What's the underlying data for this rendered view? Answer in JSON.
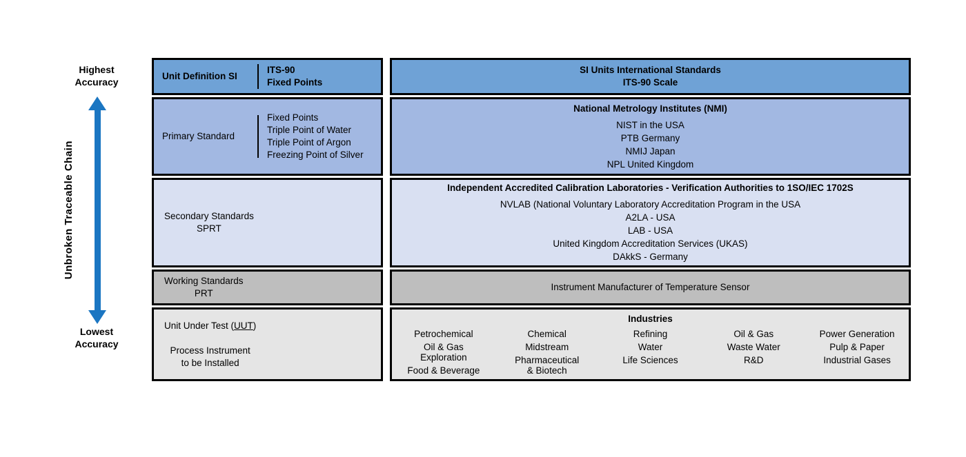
{
  "sidebar": {
    "top_label": "Highest\nAccuracy",
    "bottom_label": "Lowest\nAccuracy",
    "axis_label": "Unbroken Traceable Chain",
    "arrow_color": "#1B76C2"
  },
  "left_column": {
    "unit_definition": {
      "title": "Unit Definition SI",
      "detail": "ITS-90\nFixed Points"
    },
    "primary_standard": {
      "title": "Primary Standard",
      "detail": "Fixed Points\nTriple Point of Water\nTriple Point of Argon\nFreezing Point of Silver"
    },
    "secondary_standards": {
      "text": "Secondary Standards\nSPRT"
    },
    "working_standards": {
      "text": "Working Standards\nPRT"
    },
    "unit_under_test": {
      "prefix": "Unit Under Test (",
      "uut": "UUT",
      "suffix": ")",
      "rest": "Process Instrument\nto be Installed"
    }
  },
  "right_column": {
    "si_units": {
      "text": "SI Units International Standards\nITS-90 Scale"
    },
    "nmi": {
      "title": "National Metrology Institutes (NMI)",
      "items": "NIST in the USA\nPTB Germany\nNMIJ Japan\nNPL United Kingdom"
    },
    "accredited_labs": {
      "title": "Independent Accredited Calibration Laboratories - Verification Authorities to 1SO/IEC 1702S",
      "items": "NVLAB (National Voluntary Laboratory Accreditation Program in the USA\nA2LA - USA\nLAB - USA\nUnited Kingdom Accreditation Services (UKAS)\nDAkkS - Germany"
    },
    "manufacturer": {
      "text": "Instrument Manufacturer of Temperature Sensor"
    },
    "industries": {
      "title": "Industries",
      "columns": [
        {
          "items": [
            "Petrochemical",
            "Oil & Gas\nExploration",
            "Food & Beverage"
          ]
        },
        {
          "items": [
            "Chemical",
            "Midstream",
            "Pharmaceutical\n& Biotech"
          ]
        },
        {
          "items": [
            "Refining",
            "Water",
            "Life Sciences"
          ]
        },
        {
          "items": [
            "Oil & Gas",
            "Waste Water",
            "R&D"
          ]
        },
        {
          "items": [
            "Power Generation",
            "Pulp & Paper",
            "Industrial Gases"
          ]
        }
      ]
    }
  },
  "colors": {
    "row1_bg": "#6FA2D6",
    "row2_bg": "#A2B8E2",
    "row3_bg": "#D9E0F2",
    "row4_bg": "#BEBEBE",
    "row5_bg": "#E5E5E5",
    "border": "#000000",
    "arrow": "#1B76C2"
  }
}
